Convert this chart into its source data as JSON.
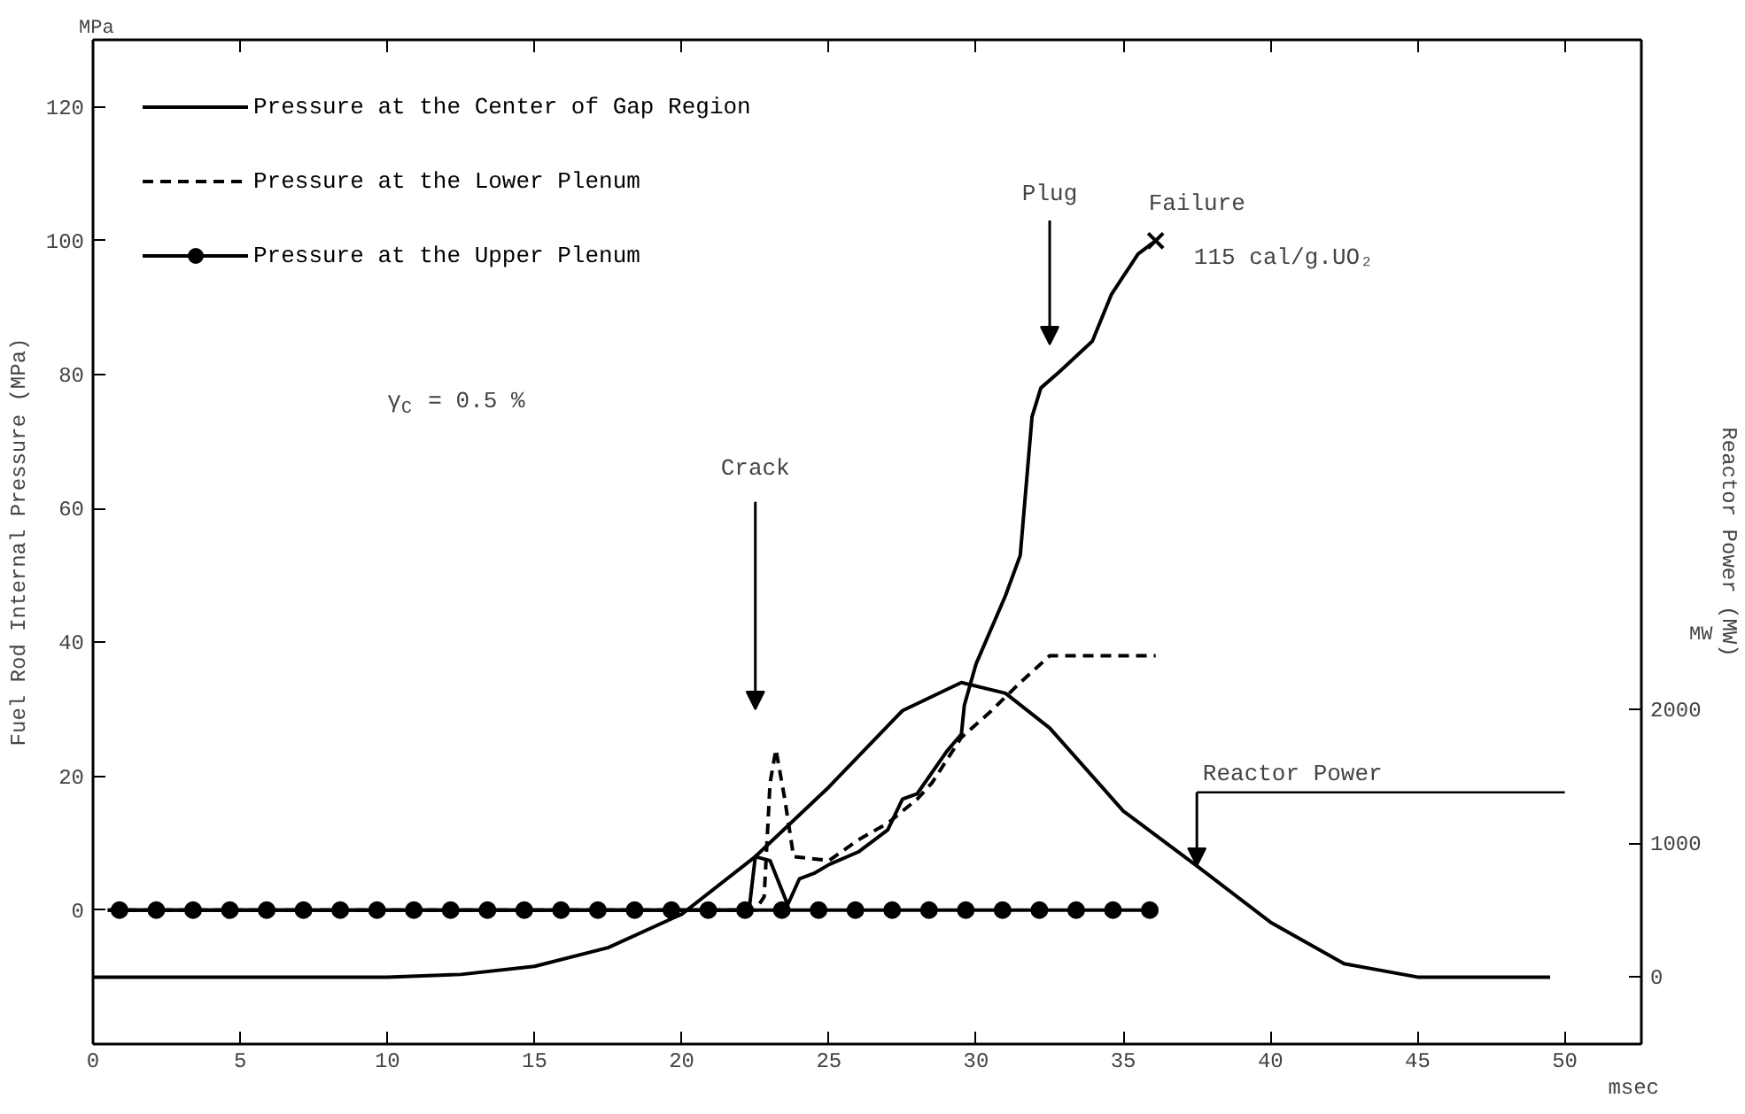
{
  "chart_data": {
    "type": "line",
    "xlabel": null,
    "ylabel": "Fuel Rod Internal Pressure (MPa)",
    "y2label": "Reactor Power (MW)",
    "xlim": [
      0,
      52.6
    ],
    "ylim": [
      -20,
      130
    ],
    "y2lim": [
      -500,
      7000
    ],
    "xticks": [
      0,
      5,
      10,
      15,
      20,
      25,
      30,
      35,
      40,
      45,
      50
    ],
    "yticks": [
      0,
      20,
      40,
      60,
      80,
      100,
      120
    ],
    "y2ticks": [
      0,
      1000,
      2000
    ],
    "grid": false,
    "legend": "top left",
    "marker": "none",
    "series": [
      {
        "name": "Pressure at the Center of Gap Region",
        "color": "#000000",
        "line_style": "solid",
        "x": [
          0.5,
          22.1,
          22.3,
          22.5,
          23,
          23.6,
          24,
          24.5,
          25,
          26,
          27,
          27.5,
          28,
          29,
          29.5,
          29.6,
          30,
          31,
          31.5,
          31.9,
          32.2,
          32.85,
          33.95,
          34.6,
          35.5,
          36.1
        ],
        "values": [
          0,
          0,
          0.5,
          8,
          7.4,
          0.8,
          4.7,
          5.5,
          6.8,
          8.7,
          12,
          16.6,
          17.4,
          23.7,
          26.3,
          30.6,
          36.8,
          47,
          53,
          73.7,
          78,
          80.5,
          85,
          92,
          98,
          100
        ]
      },
      {
        "name": "Pressure at the Lower Plenum",
        "color": "#000000",
        "line_style": "dashed",
        "x": [
          0.5,
          22.5,
          22.8,
          23,
          23.2,
          23.5,
          23.8,
          25,
          26,
          27,
          28,
          28.5,
          29.5,
          30.5,
          31.5,
          32.5,
          36.1
        ],
        "values": [
          0,
          0,
          2,
          19,
          24,
          16.6,
          8,
          7.4,
          10.5,
          13,
          16.6,
          19,
          25.8,
          29.7,
          34,
          38,
          38
        ]
      },
      {
        "name": "Pressure at the Upper Plenum",
        "color": "#000000",
        "line_style": "solid",
        "marker": "circle",
        "x": [
          0.9,
          2.15,
          3.4,
          4.65,
          5.9,
          7.15,
          8.4,
          9.65,
          10.9,
          12.15,
          13.4,
          14.65,
          15.9,
          17.15,
          18.4,
          19.65,
          20.9,
          22.15,
          23.4,
          24.65,
          25.9,
          27.15,
          28.4,
          29.65,
          30.9,
          32.15,
          33.4,
          34.65,
          35.9
        ],
        "values": [
          0,
          0,
          0,
          0,
          0,
          0,
          0,
          0,
          0,
          0,
          0,
          0,
          0,
          0,
          0,
          0,
          0,
          0,
          0,
          0,
          0,
          0,
          0,
          0,
          0,
          0,
          0,
          0,
          0
        ]
      },
      {
        "color": "#000000",
        "line_style": "solid",
        "axis": "y2",
        "x": [
          0,
          10,
          12.5,
          15,
          17.5,
          20,
          22.5,
          25,
          27.5,
          29.5,
          31,
          32.5,
          35,
          37.5,
          40,
          42.5,
          45,
          47.5,
          49.5
        ],
        "values": [
          0,
          0,
          20,
          80,
          220,
          470,
          900,
          1420,
          1990,
          2200,
          2120,
          1860,
          1240,
          830,
          410,
          100,
          0,
          0,
          0
        ]
      }
    ],
    "annotations": [
      "Crack",
      "Plug",
      {
        "text": "Failure",
        "x": 36.1,
        "y": 100
      },
      {
        "text": "Reactor Power",
        "x": 37.5,
        "y": 6.6
      },
      "γ$_{C}$ = 0.5 %",
      "115 cal/g.UO₂",
      "MPa",
      "MW",
      "msec"
    ]
  }
}
